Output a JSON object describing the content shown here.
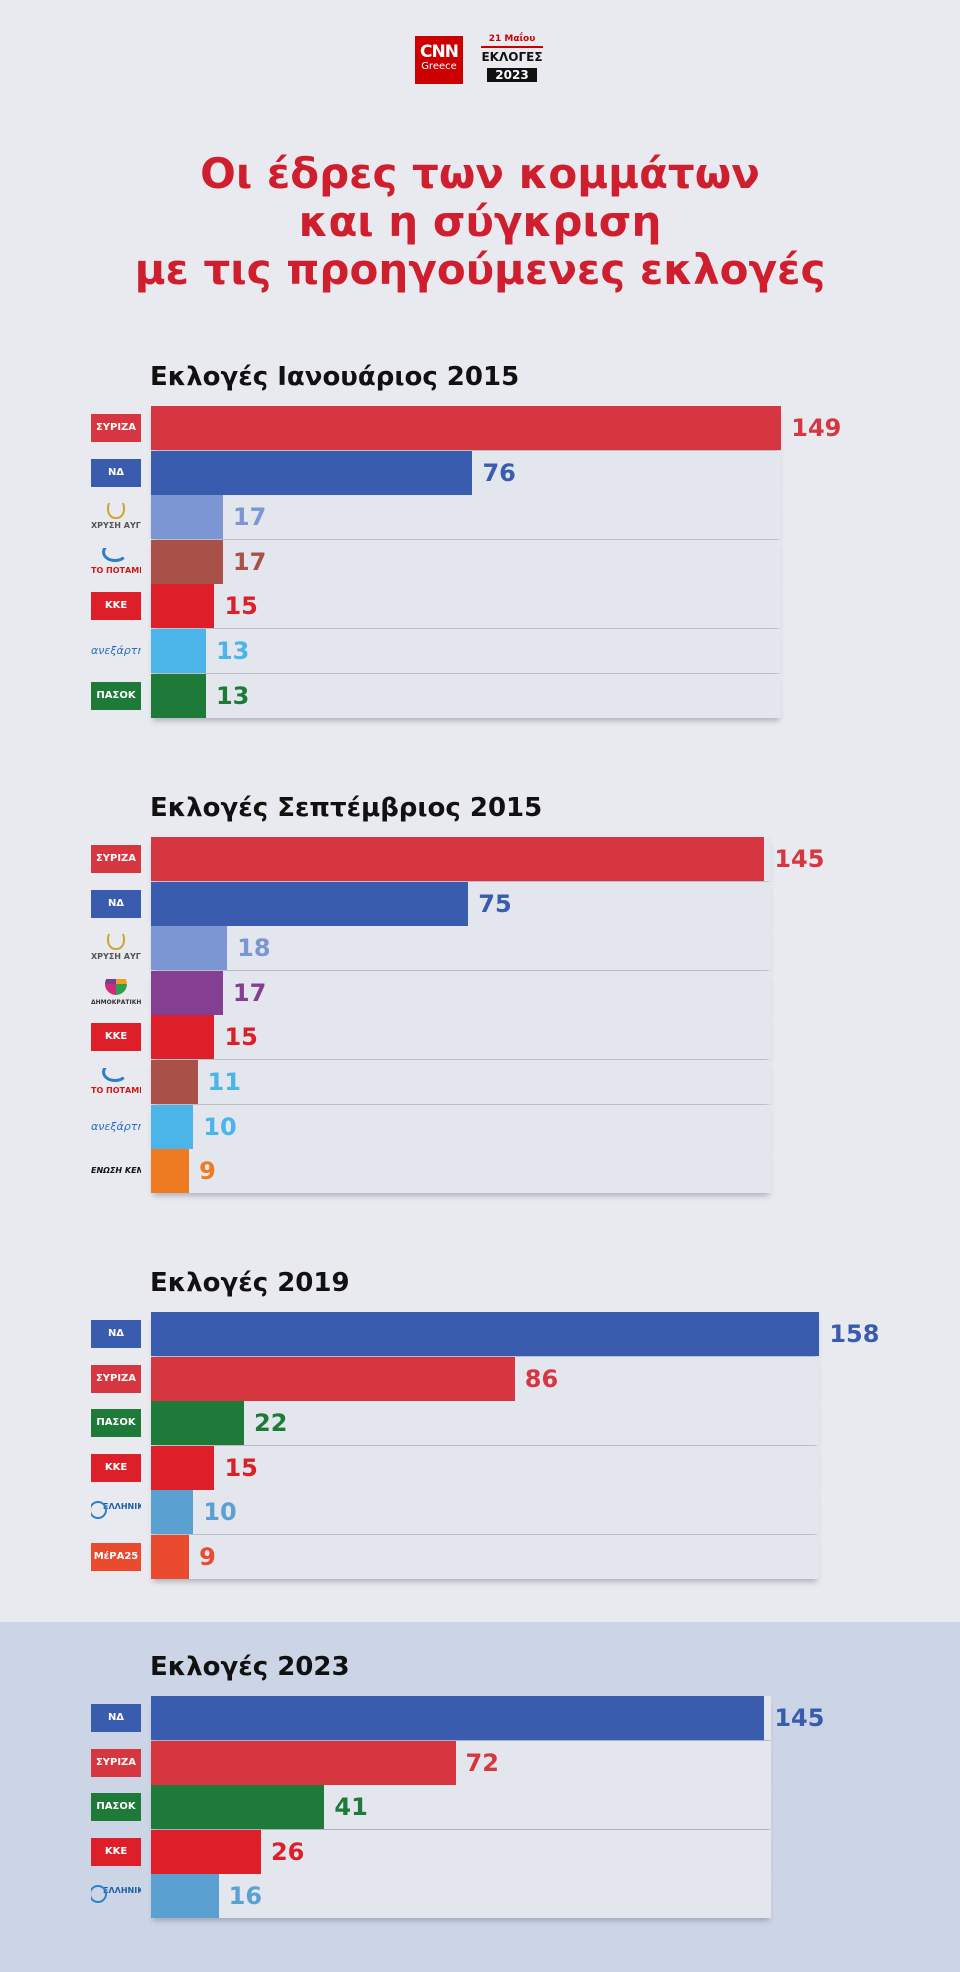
{
  "header": {
    "cnn_logo_main": "CNN",
    "cnn_logo_sub": "Greece",
    "election_logo_date": "21 Μαΐου",
    "election_logo_title": "ΕΚΛΟΓΕΣ",
    "election_logo_year": "2023"
  },
  "headline": {
    "line1": "Οι έδρες των κομμάτων",
    "line2": "και η σύγκριση",
    "line3": "με τις προηγούμενες εκλογές"
  },
  "colors": {
    "headline": "#cf1f2e",
    "syriza": "#d6363f",
    "nd": "#3a5cae",
    "golden_dawn": "#7b96d2",
    "potami": "#a95148",
    "kke": "#dd1f2a",
    "anel": "#4bb5ea",
    "pasok": "#1d7a38",
    "dimar": "#843f92",
    "union_centrists": "#ee7a22",
    "elliniki_lysi": "#5aa1d1",
    "mera25": "#ea4a2e",
    "highlight_band": "#ccd5e6"
  },
  "chart_data": [
    {
      "type": "bar",
      "orientation": "horizontal",
      "title": "Εκλογές Ιανουάριος 2015",
      "unit": "seats",
      "xlim": [
        0,
        300
      ],
      "categories": [
        "ΣΥΡΙΖΑ",
        "ΝΔ",
        "ΧΡΥΣΗ ΑΥΓΗ",
        "ΤΟ ΠΟΤΑΜΙ",
        "ΚΚΕ",
        "ΑΝΕΞΑΡΤΗΤΟΙ ΕΛΛΗΝΕΣ",
        "ΠΑΣΟΚ"
      ],
      "logos": [
        "syriza",
        "nd",
        "xa",
        "potami",
        "kke",
        "anel",
        "pasok"
      ],
      "colors": [
        "#d6363f",
        "#3a5cae",
        "#7b96d2",
        "#a95148",
        "#dd1f2a",
        "#4bb5ea",
        "#1d7a38"
      ],
      "label_colors": [
        "#d6363f",
        "#3a5cae",
        "#7b96d2",
        "#a95148",
        "#dd1f2a",
        "#4bb5ea",
        "#1d7a38"
      ],
      "values": [
        149,
        76,
        17,
        17,
        15,
        13,
        13
      ]
    },
    {
      "type": "bar",
      "orientation": "horizontal",
      "title": "Εκλογές Σεπτέμβριος 2015",
      "unit": "seats",
      "xlim": [
        0,
        300
      ],
      "categories": [
        "ΣΥΡΙΖΑ",
        "ΝΔ",
        "ΧΡΥΣΗ ΑΥΓΗ",
        "ΔΗΜΟΚΡΑΤΙΚΗ ΣΥΜΠΑΡΑΤΑΞΗ",
        "ΚΚΕ",
        "ΤΟ ΠΟΤΑΜΙ",
        "ΑΝΕΞΑΡΤΗΤΟΙ ΕΛΛΗΝΕΣ",
        "ΕΝΩΣΗ ΚΕΝΤΡΩΩΝ"
      ],
      "logos": [
        "syriza",
        "nd",
        "xa",
        "dimar",
        "kke",
        "potami",
        "anel",
        "ek"
      ],
      "colors": [
        "#d6363f",
        "#3a5cae",
        "#7b96d2",
        "#843f92",
        "#dd1f2a",
        "#a95148",
        "#4bb5ea",
        "#ee7a22"
      ],
      "label_colors": [
        "#d6363f",
        "#3a5cae",
        "#7b96d2",
        "#843f92",
        "#dd1f2a",
        "#4bb5ea",
        "#4bb5ea",
        "#ee7a22"
      ],
      "values": [
        145,
        75,
        18,
        17,
        15,
        11,
        10,
        9
      ]
    },
    {
      "type": "bar",
      "orientation": "horizontal",
      "title": "Εκλογές 2019",
      "unit": "seats",
      "xlim": [
        0,
        300
      ],
      "categories": [
        "ΝΔ",
        "ΣΥΡΙΖΑ",
        "ΠΑΣΟΚ",
        "ΚΚΕ",
        "ΕΛΛΗΝΙΚΗ ΛΥΣΗ",
        "ΜέΡΑ25"
      ],
      "logos": [
        "nd",
        "syriza",
        "pasok",
        "kke",
        "el",
        "mera25"
      ],
      "colors": [
        "#3a5cae",
        "#d6363f",
        "#1d7a38",
        "#dd1f2a",
        "#5aa1d1",
        "#ea4a2e"
      ],
      "label_colors": [
        "#3a5cae",
        "#d6363f",
        "#1d7a38",
        "#dd1f2a",
        "#5aa1d1",
        "#ea4a2e"
      ],
      "values": [
        158,
        86,
        22,
        15,
        10,
        9
      ]
    },
    {
      "type": "bar",
      "orientation": "horizontal",
      "title": "Εκλογές 2023",
      "unit": "seats",
      "xlim": [
        0,
        300
      ],
      "categories": [
        "ΝΔ",
        "ΣΥΡΙΖΑ",
        "ΠΑΣΟΚ",
        "ΚΚΕ",
        "ΕΛΛΗΝΙΚΗ ΛΥΣΗ"
      ],
      "logos": [
        "nd",
        "syriza",
        "pasok",
        "kke",
        "el"
      ],
      "colors": [
        "#3a5cae",
        "#d6363f",
        "#1d7a38",
        "#dd1f2a",
        "#5aa1d1"
      ],
      "label_colors": [
        "#3a5cae",
        "#d6363f",
        "#1d7a38",
        "#dd1f2a",
        "#5aa1d1"
      ],
      "values": [
        145,
        72,
        41,
        26,
        16
      ]
    }
  ],
  "logo_texts": {
    "syriza": "ΣΥΡΙΖΑ",
    "nd": "ΝΔ",
    "xa": "ΧΡΥΣΗ ΑΥΓΗ",
    "potami": "ΤΟ ΠΟΤΑΜΙ",
    "kke": "ΚΚΕ",
    "anel": "ανεξάρτητοι",
    "pasok": "ΠΑΣΟΚ",
    "dimar": "ΔΗΜΟΚΡΑΤΙΚΗ ΣΥΜΠΑΡΑΤΑΞΗ",
    "ek": "ΕΝΩΣΗ ΚΕΝΤΡΩΩΝ",
    "el": "ΕΛΛΗΝΙΚΗ ΛΥΣΗ",
    "mera25": "ΜέΡΑ25"
  }
}
